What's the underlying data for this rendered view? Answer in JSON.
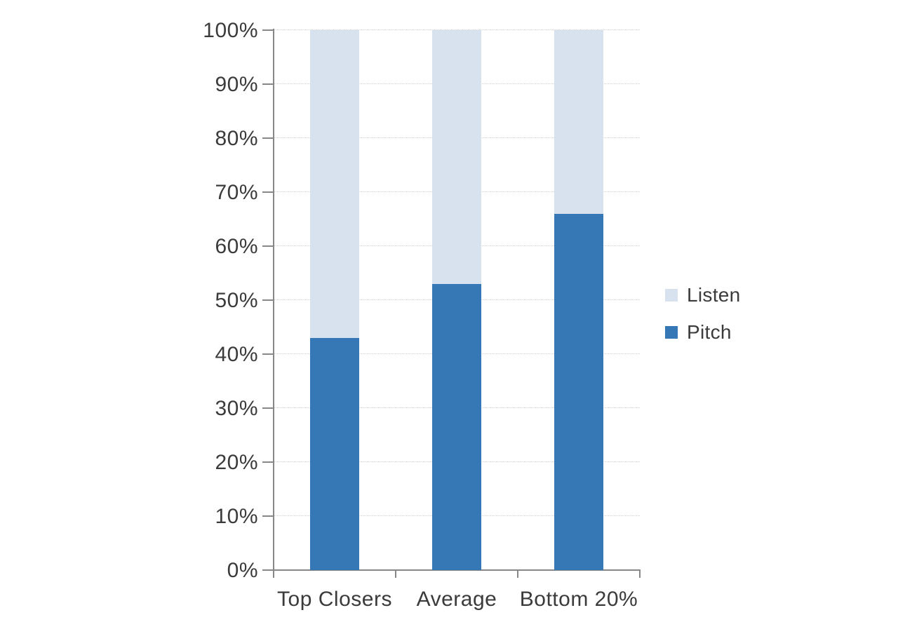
{
  "chart_data": {
    "type": "bar",
    "stacked": true,
    "percent_stacked": true,
    "title": "",
    "categories": [
      "Top Closers",
      "Average",
      "Bottom 20%"
    ],
    "series": [
      {
        "name": "Pitch",
        "color": "#3578b5",
        "values": [
          43,
          53,
          66
        ]
      },
      {
        "name": "Listen",
        "color": "#d7e2ee",
        "values": [
          57,
          47,
          34
        ]
      }
    ],
    "ylabel": "",
    "xlabel": "",
    "ylim": [
      0,
      100
    ],
    "ytick_step": 10,
    "ytick_suffix": "%",
    "ytick_labels": [
      "0%",
      "10%",
      "20%",
      "30%",
      "40%",
      "50%",
      "60%",
      "70%",
      "80%",
      "90%",
      "100%"
    ],
    "grid": true,
    "gridline_style": "dotted",
    "legend_position": "right",
    "legend_order": [
      "Listen",
      "Pitch"
    ]
  },
  "legend_items": [
    {
      "label": "Listen",
      "color": "#d7e2ee"
    },
    {
      "label": "Pitch",
      "color": "#3578b5"
    }
  ],
  "colors": {
    "pitch": "#3578b5",
    "listen": "#d7e2ee",
    "axis": "#878787",
    "grid": "#cfcfcf",
    "text": "#3b3b3d",
    "background": "#ffffff"
  }
}
